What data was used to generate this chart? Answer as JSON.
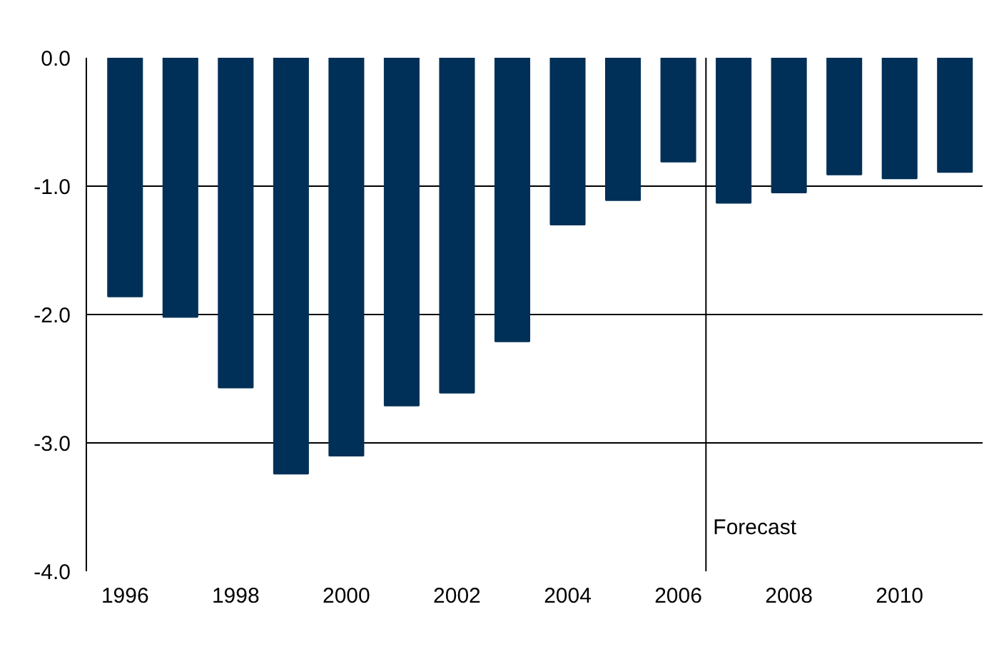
{
  "chart_data": {
    "type": "bar",
    "x": [
      1996,
      1997,
      1998,
      1999,
      2000,
      2001,
      2002,
      2003,
      2004,
      2005,
      2006,
      2007,
      2008,
      2009,
      2010,
      2011
    ],
    "values": [
      -1.86,
      -2.02,
      -2.57,
      -3.24,
      -3.1,
      -2.71,
      -2.61,
      -2.21,
      -1.3,
      -1.11,
      -0.81,
      -1.13,
      -1.05,
      -0.91,
      -0.94,
      -0.89
    ],
    "color": "#003057",
    "xlim": [
      1995.3,
      2011.5
    ],
    "xticks": [
      1996,
      1998,
      2000,
      2002,
      2004,
      2006,
      2008,
      2010
    ],
    "ylim": [
      -4,
      0
    ],
    "yticks": [
      {
        "value": -4,
        "label": "-4.0"
      },
      {
        "value": -3,
        "label": "-3.0"
      },
      {
        "value": -2,
        "label": "-2.0"
      },
      {
        "value": -1,
        "label": "-1.0"
      },
      {
        "value": 0,
        "label": "0.0"
      }
    ],
    "grid": "y",
    "ref_lines": [
      {
        "axis": "x",
        "value": 2006.5,
        "label": "Forecast",
        "color": "#000000"
      }
    ]
  }
}
